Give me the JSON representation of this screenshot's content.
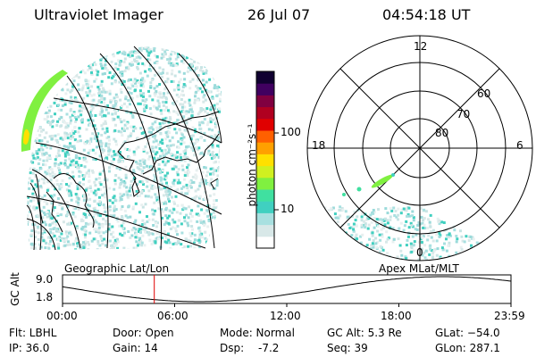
{
  "header": {
    "title": "Ultraviolet Imager",
    "date": "26 Jul 07",
    "time": "04:54:18 UT"
  },
  "colorbar": {
    "unit_label": "photon cm⁻²s⁻¹",
    "tick_100": "100",
    "tick_10": "10",
    "colors": [
      "#ffffff",
      "#d8e8e8",
      "#a8e0e0",
      "#40d0c0",
      "#40e0a0",
      "#80f040",
      "#d0f020",
      "#ffe000",
      "#ffa000",
      "#ff6000",
      "#e00000",
      "#b00020",
      "#800040",
      "#400060",
      "#100030"
    ]
  },
  "polar": {
    "label_12": "12",
    "label_18": "18",
    "label_6": "6",
    "label_0": "0",
    "lat_60": "60",
    "lat_70": "70",
    "lat_80": "80"
  },
  "timeline": {
    "left_caption": "Geographic Lat/Lon",
    "right_caption": "Apex MLat/MLT",
    "y_axis_label": "GC Alt",
    "y_top": "9.0",
    "y_bottom": "1.8",
    "x_ticks": [
      "00:00",
      "06:00",
      "12:00",
      "18:00",
      "23:59"
    ],
    "current_time_hours": 4.905
  },
  "info": {
    "flt": "Flt: LBHL",
    "ip": "IP: 36.0",
    "door": "Door: Open",
    "gain": "Gain: 14",
    "mode": "Mode: Normal",
    "dsp_label": "Dsp:",
    "dsp_value": "-7.2",
    "gcalt": "GC Alt: 5.3 Re",
    "seq": "Seq: 39",
    "glat": "GLat: −54.0",
    "glon": "GLon: 287.1"
  }
}
